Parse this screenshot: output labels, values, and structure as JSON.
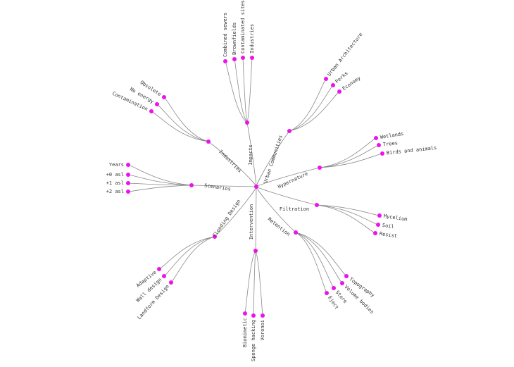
{
  "colors": {
    "node": "#ee11ee",
    "link": "#8a8a8a",
    "text": "#333333",
    "background": "#ffffff"
  },
  "tree": {
    "branches": [
      {
        "id": "impacts",
        "label": "Impacts",
        "children": [
          "Industries",
          "Contaminated sites",
          "Brownfields",
          "Combined sewers"
        ]
      },
      {
        "id": "urban",
        "label": "Urban Communities",
        "children": [
          "Urban Architecture",
          "Perks",
          "Economy"
        ]
      },
      {
        "id": "hyper",
        "label": "Hypernature",
        "children": [
          "Wetlands",
          "Trees",
          "Birds and animals"
        ]
      },
      {
        "id": "filtration",
        "label": "Filtration",
        "children": [
          "Mycelium",
          "Soil",
          "Resist"
        ]
      },
      {
        "id": "retention",
        "label": "Retention",
        "children": [
          "Topography",
          "Volume bodies",
          "Store",
          "Eject"
        ]
      },
      {
        "id": "intervention",
        "label": "Intervention",
        "children": [
          "Biomimetic",
          "Sponge hacking",
          "Voronoi"
        ]
      },
      {
        "id": "flooding",
        "label": "Flooding Design",
        "children": [
          "Adaptive",
          "Wall design",
          "Landform Design"
        ]
      },
      {
        "id": "scenarios",
        "label": "Scenarios",
        "children": [
          "Years",
          "+0 asl",
          "+1 asl",
          "+2 asl"
        ]
      },
      {
        "id": "industries",
        "label": "Industries",
        "children": [
          "Obsolete",
          "No energy",
          "Contamination"
        ]
      }
    ]
  }
}
